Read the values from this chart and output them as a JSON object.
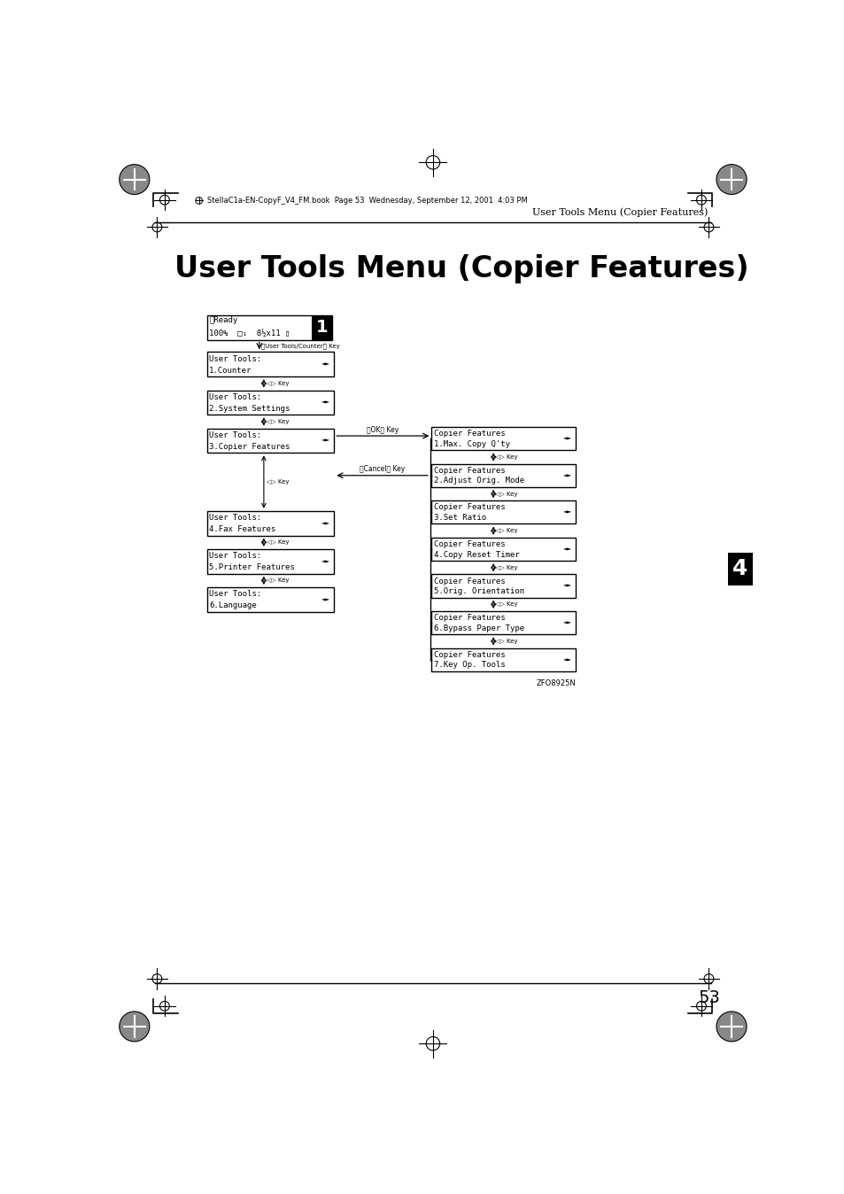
{
  "title": "User Tools Menu (Copier Features)",
  "header_text": "User Tools Menu (Copier Features)",
  "page_number": "53",
  "chapter_number": "4",
  "file_info": "StellaC1a-EN-CopyF_V4_FM.book  Page 53  Wednesday, September 12, 2001  4:03 PM",
  "image_code": "ZFO8925N",
  "bg_color": "#ffffff"
}
